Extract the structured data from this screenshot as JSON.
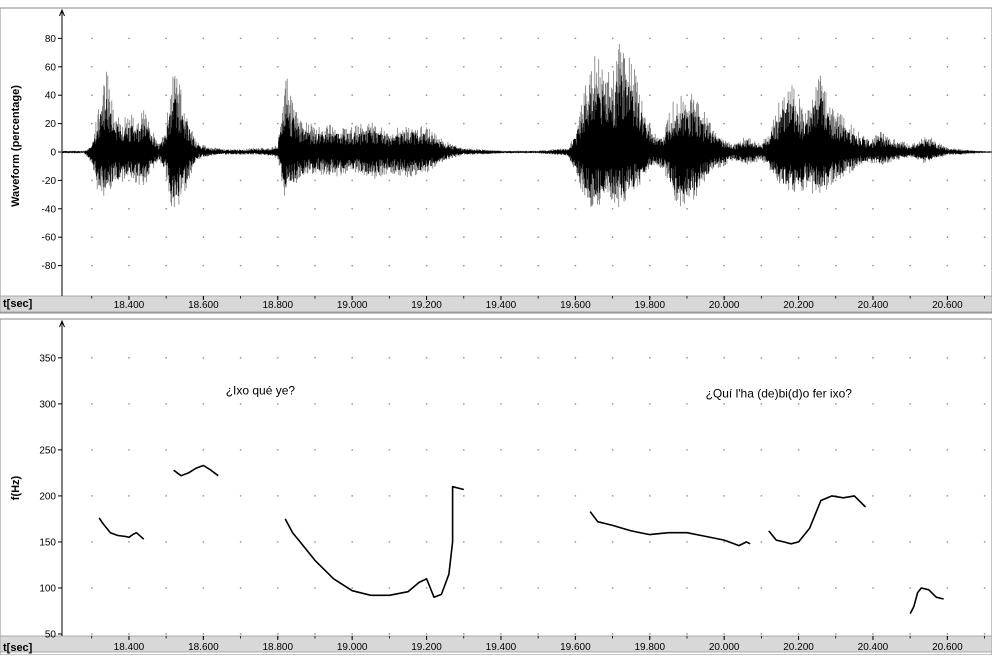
{
  "chart_data": [
    {
      "type": "line",
      "title": "",
      "xlabel": "t[sec]",
      "ylabel": "Waveform (percentage)",
      "xlim": [
        18.22,
        20.72
      ],
      "ylim": [
        -100,
        100
      ],
      "y_ticks": [
        -80,
        -60,
        -40,
        -20,
        0,
        20,
        40,
        60,
        80
      ],
      "x_ticks": [
        18.4,
        18.6,
        18.8,
        19.0,
        19.2,
        19.4,
        19.6,
        19.8,
        20.0,
        20.2,
        20.4,
        20.6
      ],
      "x_tick_labels": [
        "18.400",
        "18.600",
        "18.800",
        "19.000",
        "19.200",
        "19.400",
        "19.600",
        "19.800",
        "20.000",
        "20.200",
        "20.400",
        "20.600"
      ],
      "grid": true,
      "series": [
        {
          "values_desc": "amplitude envelope",
          "x": [
            18.22,
            18.28,
            18.3,
            18.32,
            18.34,
            18.36,
            18.38,
            18.4,
            18.42,
            18.44,
            18.46,
            18.48,
            18.5,
            18.52,
            18.54,
            18.56,
            18.58,
            18.6,
            18.62,
            18.64,
            18.66,
            18.7,
            18.74,
            18.78,
            18.8,
            18.82,
            18.84,
            18.86,
            18.9,
            18.95,
            19.0,
            19.05,
            19.1,
            19.15,
            19.2,
            19.25,
            19.3,
            19.35,
            19.4,
            19.5,
            19.58,
            19.6,
            19.62,
            19.64,
            19.66,
            19.68,
            19.7,
            19.72,
            19.74,
            19.76,
            19.78,
            19.8,
            19.82,
            19.84,
            19.86,
            19.88,
            19.9,
            19.92,
            19.94,
            19.96,
            19.98,
            20.0,
            20.02,
            20.04,
            20.06,
            20.08,
            20.1,
            20.12,
            20.14,
            20.16,
            20.18,
            20.2,
            20.22,
            20.24,
            20.26,
            20.28,
            20.3,
            20.32,
            20.34,
            20.36,
            20.38,
            20.4,
            20.42,
            20.44,
            20.46,
            20.48,
            20.5,
            20.52,
            20.54,
            20.56,
            20.58,
            20.6,
            20.64,
            20.68,
            20.72
          ],
          "upper": [
            1,
            1,
            5,
            35,
            60,
            30,
            25,
            28,
            25,
            30,
            20,
            5,
            20,
            62,
            45,
            25,
            8,
            5,
            3,
            3,
            2,
            2,
            3,
            3,
            5,
            58,
            35,
            25,
            18,
            20,
            18,
            22,
            15,
            20,
            18,
            8,
            3,
            2,
            1,
            1,
            3,
            15,
            40,
            60,
            75,
            65,
            55,
            80,
            70,
            60,
            35,
            20,
            12,
            15,
            40,
            42,
            38,
            45,
            30,
            25,
            15,
            10,
            6,
            8,
            12,
            8,
            6,
            15,
            30,
            45,
            50,
            40,
            28,
            45,
            55,
            40,
            30,
            25,
            20,
            15,
            12,
            10,
            15,
            12,
            10,
            8,
            5,
            8,
            12,
            10,
            6,
            3,
            2,
            1,
            0.5
          ],
          "lower": [
            -1,
            -1,
            -8,
            -35,
            -30,
            -25,
            -22,
            -20,
            -22,
            -25,
            -15,
            -5,
            -18,
            -48,
            -35,
            -22,
            -6,
            -4,
            -3,
            -2,
            -2,
            -2,
            -2,
            -3,
            -5,
            -35,
            -28,
            -20,
            -15,
            -18,
            -15,
            -20,
            -15,
            -18,
            -15,
            -6,
            -2,
            -2,
            -1,
            -1,
            -3,
            -15,
            -30,
            -40,
            -38,
            -35,
            -38,
            -40,
            -35,
            -30,
            -20,
            -12,
            -10,
            -15,
            -30,
            -40,
            -38,
            -35,
            -25,
            -18,
            -12,
            -10,
            -6,
            -8,
            -10,
            -8,
            -6,
            -12,
            -20,
            -28,
            -30,
            -30,
            -25,
            -30,
            -32,
            -28,
            -22,
            -18,
            -15,
            -10,
            -8,
            -8,
            -10,
            -8,
            -6,
            -5,
            -4,
            -6,
            -8,
            -6,
            -4,
            -2,
            -2,
            -1,
            -0.5
          ]
        }
      ]
    },
    {
      "type": "line",
      "title": "",
      "xlabel": "t[sec]",
      "ylabel": "f(Hz)",
      "xlim": [
        18.22,
        20.72
      ],
      "ylim": [
        50,
        390
      ],
      "y_ticks": [
        50,
        100,
        150,
        200,
        250,
        300,
        350
      ],
      "x_ticks": [
        18.4,
        18.6,
        18.8,
        19.0,
        19.2,
        19.4,
        19.6,
        19.8,
        20.0,
        20.2,
        20.4,
        20.6
      ],
      "x_tick_labels": [
        "18.400",
        "18.600",
        "18.800",
        "19.000",
        "19.200",
        "19.400",
        "19.600",
        "19.800",
        "20.000",
        "20.200",
        "20.400",
        "20.600"
      ],
      "grid": true,
      "annotations": [
        {
          "text": "¿Ixo qué ye?",
          "x": 18.66,
          "y": 310
        },
        {
          "text": "¿Quí l'ha (de)bi(d)o fer ixo?",
          "x": 19.95,
          "y": 307
        }
      ],
      "series": [
        {
          "x": [
            18.32,
            18.33,
            18.35,
            18.37,
            18.39,
            18.4,
            18.41,
            18.42,
            18.44
          ],
          "y": [
            176,
            170,
            160,
            157,
            156,
            155,
            158,
            160,
            153
          ]
        },
        {
          "x": [
            18.52,
            18.54,
            18.56,
            18.58,
            18.6,
            18.62,
            18.64
          ],
          "y": [
            228,
            222,
            225,
            230,
            233,
            228,
            222
          ]
        },
        {
          "x": [
            18.82,
            18.84,
            18.86,
            18.9,
            18.95,
            19.0,
            19.05,
            19.1,
            19.15,
            19.18,
            19.2,
            19.22,
            19.24,
            19.26,
            19.27,
            19.27,
            19.3
          ],
          "y": [
            175,
            160,
            150,
            130,
            110,
            97,
            92,
            92,
            96,
            106,
            110,
            90,
            93,
            115,
            150,
            210,
            207
          ]
        },
        {
          "x": [
            19.64,
            19.66,
            19.7,
            19.75,
            19.8,
            19.85,
            19.9,
            19.95,
            20.0,
            20.04,
            20.06,
            20.07
          ],
          "y": [
            183,
            172,
            168,
            162,
            158,
            160,
            160,
            156,
            152,
            146,
            150,
            148
          ]
        },
        {
          "x": [
            20.12,
            20.14,
            20.16,
            20.18,
            20.2,
            20.23,
            20.26,
            20.29,
            20.32,
            20.35,
            20.37,
            20.38
          ],
          "y": [
            162,
            152,
            150,
            148,
            150,
            165,
            195,
            200,
            198,
            200,
            192,
            188
          ]
        },
        {
          "x": [
            20.5,
            20.51,
            20.52,
            20.53,
            20.55,
            20.57,
            20.59
          ],
          "y": [
            72,
            80,
            95,
            100,
            98,
            90,
            88
          ]
        }
      ]
    }
  ]
}
